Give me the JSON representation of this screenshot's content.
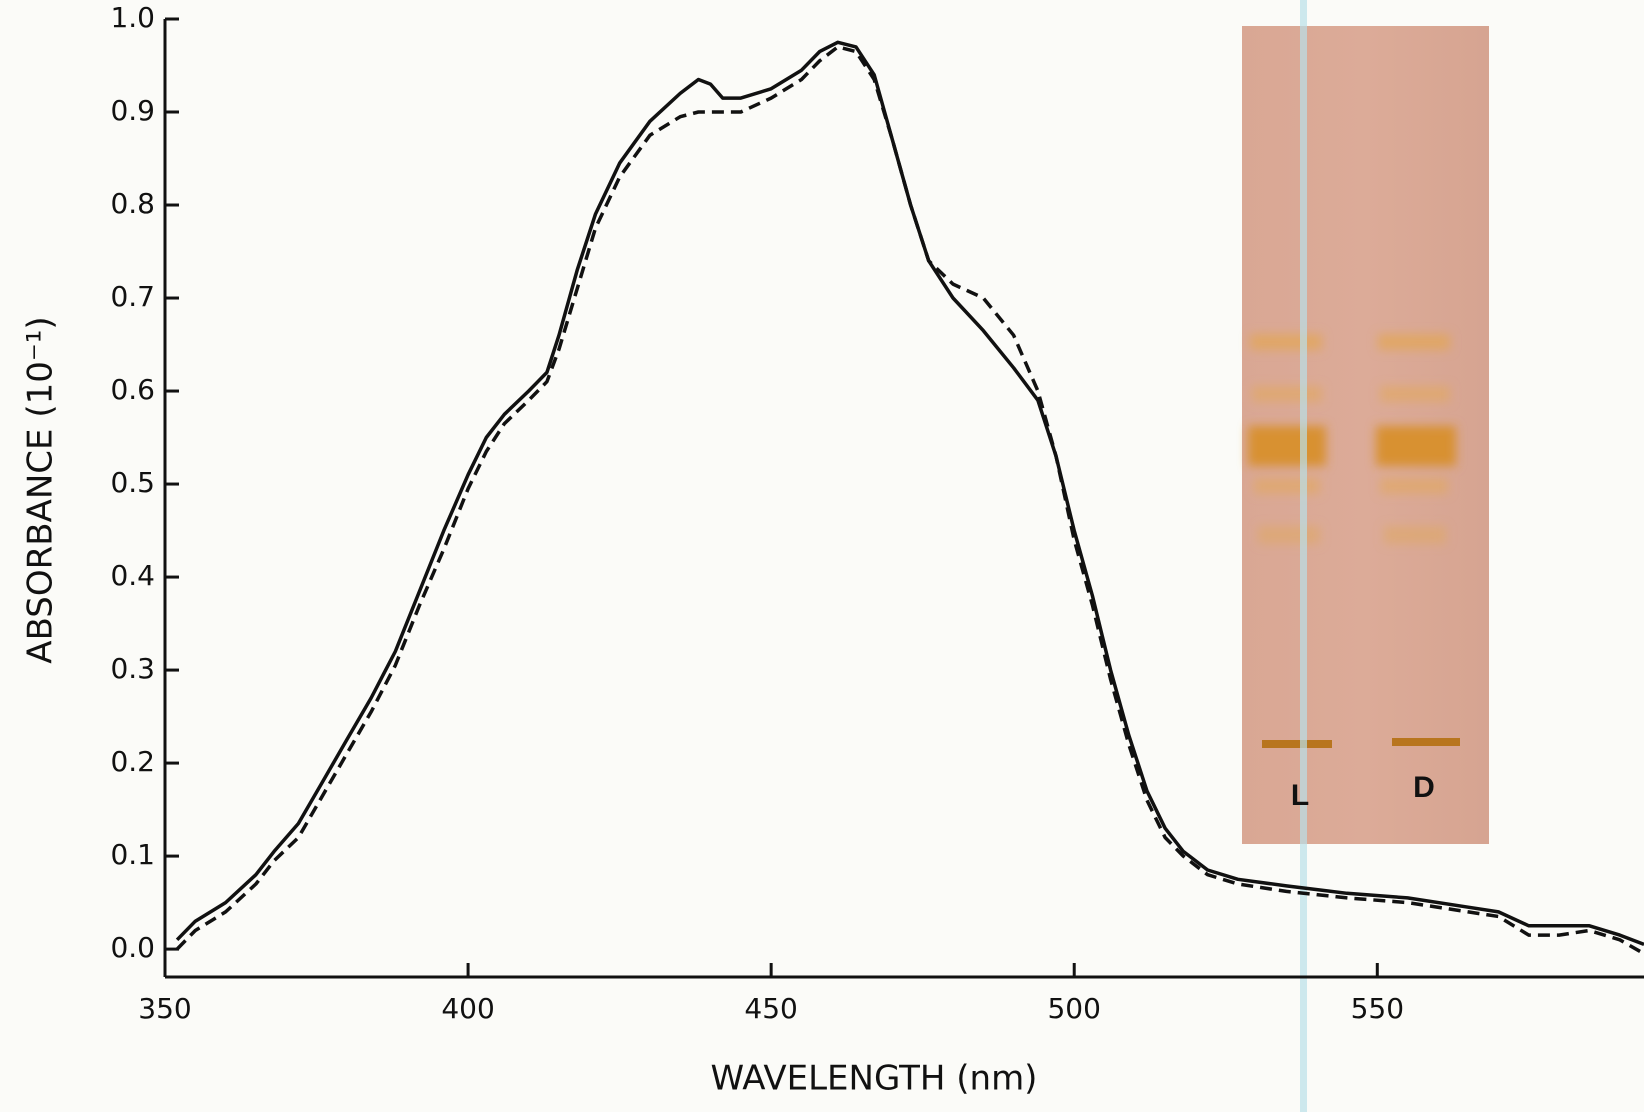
{
  "chart_data": {
    "type": "line",
    "xlabel": "WAVELENGTH (nm)",
    "ylabel": "ABSORBANCE (10⁻¹)",
    "x": [
      352,
      355,
      360,
      365,
      368,
      372,
      376,
      380,
      384,
      388,
      392,
      396,
      400,
      403,
      406,
      410,
      413,
      415,
      418,
      421,
      425,
      430,
      435,
      438,
      440,
      442,
      445,
      450,
      455,
      458,
      461,
      464,
      467,
      470,
      473,
      476,
      480,
      485,
      490,
      494,
      497,
      500,
      503,
      506,
      509,
      512,
      515,
      518,
      522,
      527,
      535,
      545,
      555,
      565,
      570,
      575,
      580,
      585,
      590,
      594
    ],
    "series": [
      {
        "color": "#111111",
        "line_style": "solid",
        "values": [
          0.01,
          0.03,
          0.05,
          0.08,
          0.105,
          0.135,
          0.18,
          0.225,
          0.27,
          0.32,
          0.385,
          0.45,
          0.51,
          0.55,
          0.575,
          0.6,
          0.62,
          0.66,
          0.73,
          0.79,
          0.845,
          0.89,
          0.92,
          0.935,
          0.93,
          0.915,
          0.915,
          0.925,
          0.945,
          0.965,
          0.975,
          0.97,
          0.94,
          0.87,
          0.8,
          0.74,
          0.7,
          0.665,
          0.625,
          0.59,
          0.53,
          0.45,
          0.38,
          0.3,
          0.23,
          0.17,
          0.13,
          0.105,
          0.085,
          0.075,
          0.068,
          0.06,
          0.055,
          0.045,
          0.04,
          0.025,
          0.025,
          0.025,
          0.015,
          0.005
        ]
      },
      {
        "color": "#111111",
        "line_style": "dashed",
        "values": [
          0.0,
          0.02,
          0.04,
          0.07,
          0.095,
          0.12,
          0.165,
          0.21,
          0.255,
          0.305,
          0.37,
          0.43,
          0.495,
          0.535,
          0.565,
          0.59,
          0.61,
          0.645,
          0.71,
          0.775,
          0.83,
          0.875,
          0.895,
          0.9,
          0.9,
          0.9,
          0.9,
          0.915,
          0.935,
          0.955,
          0.97,
          0.965,
          0.935,
          0.87,
          0.8,
          0.74,
          0.715,
          0.7,
          0.66,
          0.6,
          0.53,
          0.44,
          0.37,
          0.29,
          0.22,
          0.16,
          0.12,
          0.1,
          0.08,
          0.07,
          0.062,
          0.055,
          0.05,
          0.04,
          0.035,
          0.015,
          0.015,
          0.02,
          0.01,
          -0.005
        ]
      }
    ],
    "xlim": [
      350,
      594
    ],
    "ylim": [
      -0.03,
      1.0
    ],
    "xticks": [
      350,
      400,
      450,
      500,
      550
    ],
    "yticks": [
      {
        "value": 0,
        "label": "0.0"
      },
      0.1,
      0.2,
      0.3,
      0.4,
      0.5,
      0.6,
      0.7,
      0.8,
      0.9,
      {
        "value": 1,
        "label": "1.0"
      }
    ],
    "annotations": [
      "L",
      "D"
    ]
  }
}
